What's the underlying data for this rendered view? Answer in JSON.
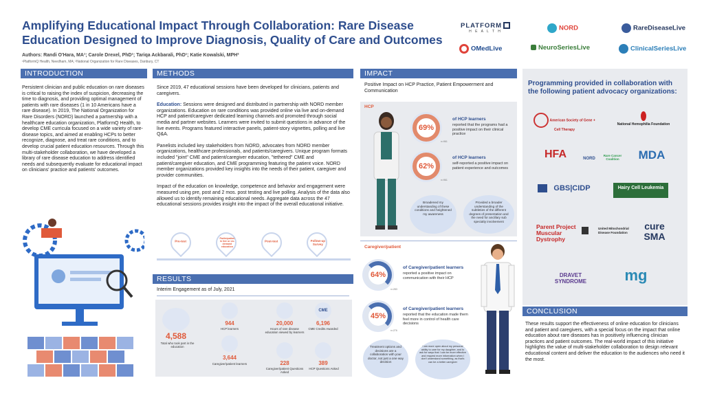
{
  "title": "Amplifying Educational Impact Through Collaboration: Rare Disease Education Designed to Improve Diagnosis, Quality of Care and Outcomes",
  "authors": "Authors: Randi O'Hara, MA¹; Carole Drexel, PhD¹; Tariqa Ackbarali, PhD¹; Katie Kowalski, MPH²",
  "affiliations": "¹PlatformQ Health, Needham, MA; ²National Organization for Rare Diseases, Danbury, CT",
  "logos": {
    "platform": "PLATFORM",
    "platform_sub": "H E A L T H",
    "nord": "NORD",
    "rdl": "RareDiseaseLive",
    "omed": "OMedLive",
    "neuro": "NeuroSeriesLive",
    "clinical": "ClinicalSeriesLive"
  },
  "introduction": {
    "heading": "INTRODUCTION",
    "text": "Persistent clinician and public education on rare diseases is critical to raising the index of suspicion, decreasing the time to diagnosis, and providing optimal management of patients with rare diseases (1 in 10 Americans have a rare disease). In 2019, The National Organization for Rare Disorders (NORD) launched a partnership with a healthcare education organization, PlatformQ Health,  to develop CME curricula focused on a wide variety of rare-disease topics, and aimed at enabling HCPs to better recognize, diagnose, and treat rare conditions, and to develop crucial patient education resources. Through this multi-stakeholder collaboration, we have developed a library of rare disease education to address identified needs and subsequently evaluate for educational impact on clinicians' practice and patients' outcomes."
  },
  "methods": {
    "heading": "METHODS",
    "p1": "Since 2019, 47 educational sessions have been developed for clinicians, patients and caregivers.",
    "p2_label": "Education:",
    "p2": " Sessions were designed and distributed in partnership with NORD member organizations. Education on rare conditions was provided online via live and on-demand HCP and patient/caregiver dedicated learning channels and promoted through social media and partner websites. Learners were invited to submit questions in advance of the live events. Programs featured interactive panels, patient-story vignettes,  polling and live Q&A.",
    "p3": "Panelists included key stakeholders from NORD, advocates from NORD member organizations, healthcare professionals, and patients/caregivers. Unique program formats included \"joint\" CME and patient/caregiver education, \"tethered\" CME and patient/caregiver education, and CME programming featuring the patient voice. NORD member organizations provided key insights into the needs of their patient, caregiver and provider communities.",
    "p4": "Impact of the education on knowledge, competence and behavior and engagement were measured using pre, post and 2 mos. post testing and live polling. Analysis of the data also allowed us to identify remaining educational needs. Aggregate data across the 47 educational sessions provides insight into the impact of the overall educational initiative.",
    "timeline": [
      "Pre-test",
      "Participation in live or on-demand education",
      "Post-test",
      "Follow-up Survey"
    ]
  },
  "results": {
    "heading": "RESULTS",
    "subheading": "Interim Engagement as of July, 2021",
    "total_num": "4,588",
    "total_lbl": "Total who took part in the education",
    "hcp_num": "944",
    "hcp_lbl": "HCP learners",
    "pc_num": "3,644",
    "pc_lbl": "Caregiver/patient learners",
    "hours_num": "20,000",
    "hours_lbl": "Hours of rare disease education viewed by learners",
    "cme_num": "6,196",
    "cme_lbl": "CME Credits Awarded",
    "cme_icon": "CME",
    "q1_num": "228",
    "q1_lbl": "Caregiver/patient Questions Asked",
    "q2_num": "389",
    "q2_lbl": "HCP Questions Asked"
  },
  "impact": {
    "heading": "IMPACT",
    "subheading": "Positive Impact on HCP Practice, Patient Empowerment and Communication",
    "hcp_label": "HCP",
    "s1_pct": "69%",
    "s1_n": "n=961",
    "s1_head": "of HCP learners",
    "s1_txt": "reported that the programs had a positive impact on their clinical practice",
    "s2_pct": "62%",
    "s2_n": "n=961",
    "s2_head": "of HCP learners",
    "s2_txt": "self-reported a positive impact on patient experience and outcomes",
    "b1": "Broadened my understanding of these conditions and heightened my awareness",
    "b2": "Provided a broader understanding of the subtleties of the different degrees of presentation and the need for ancillary sub specialty involvement",
    "cg_label": "Caregiver/patient",
    "s3_pct": "64%",
    "s3_n": "n=283",
    "s3_head": "of Caregiver/patient learners",
    "s3_txt": "reported a positive impact on communication with their HCP",
    "s4_pct": "45%",
    "s4_n": "n=276",
    "s4_head": "of Caregiver/patient learners",
    "s4_txt": "reported that the education made them feel more in control of health care decisions",
    "b3": "Treatment options and decisions are a collaboration with your doctor, not just a one way decision",
    "b4": "I am more open about my personal ability to care for my daughter, and to ask for ways that I can be more effective and request more information when I don't understand something, as that's can be a better caregiver"
  },
  "orgs": {
    "heading": "Programming provided in collaboration with the following patient advocacy organizations:",
    "list": [
      "American Society of Gene + Cell Therapy",
      "National Hemophilia Foundation",
      "HFA",
      "NORD",
      "Rare Cancer Coalition",
      "MDA",
      "GBS|CIDP",
      "Hairy Cell Leukemia",
      "Parent Project Muscular Dystrophy",
      "United Mitochondrial Disease Foundation",
      "cure SMA",
      "DRAVET SYNDROME",
      "mg"
    ]
  },
  "conclusion": {
    "heading": "CONCLUSION",
    "text": "These results support the effectiveness of online education for clinicians and patient and caregivers, with a special focus on the impact  that online education about rare diseases has in positively influencing clinician practices and patient outcomes. The real-world impact of this initiative highlights the value of multi-stakeholder collaboration to design relevant educational content and deliver the education to the audiences who need it the most."
  }
}
